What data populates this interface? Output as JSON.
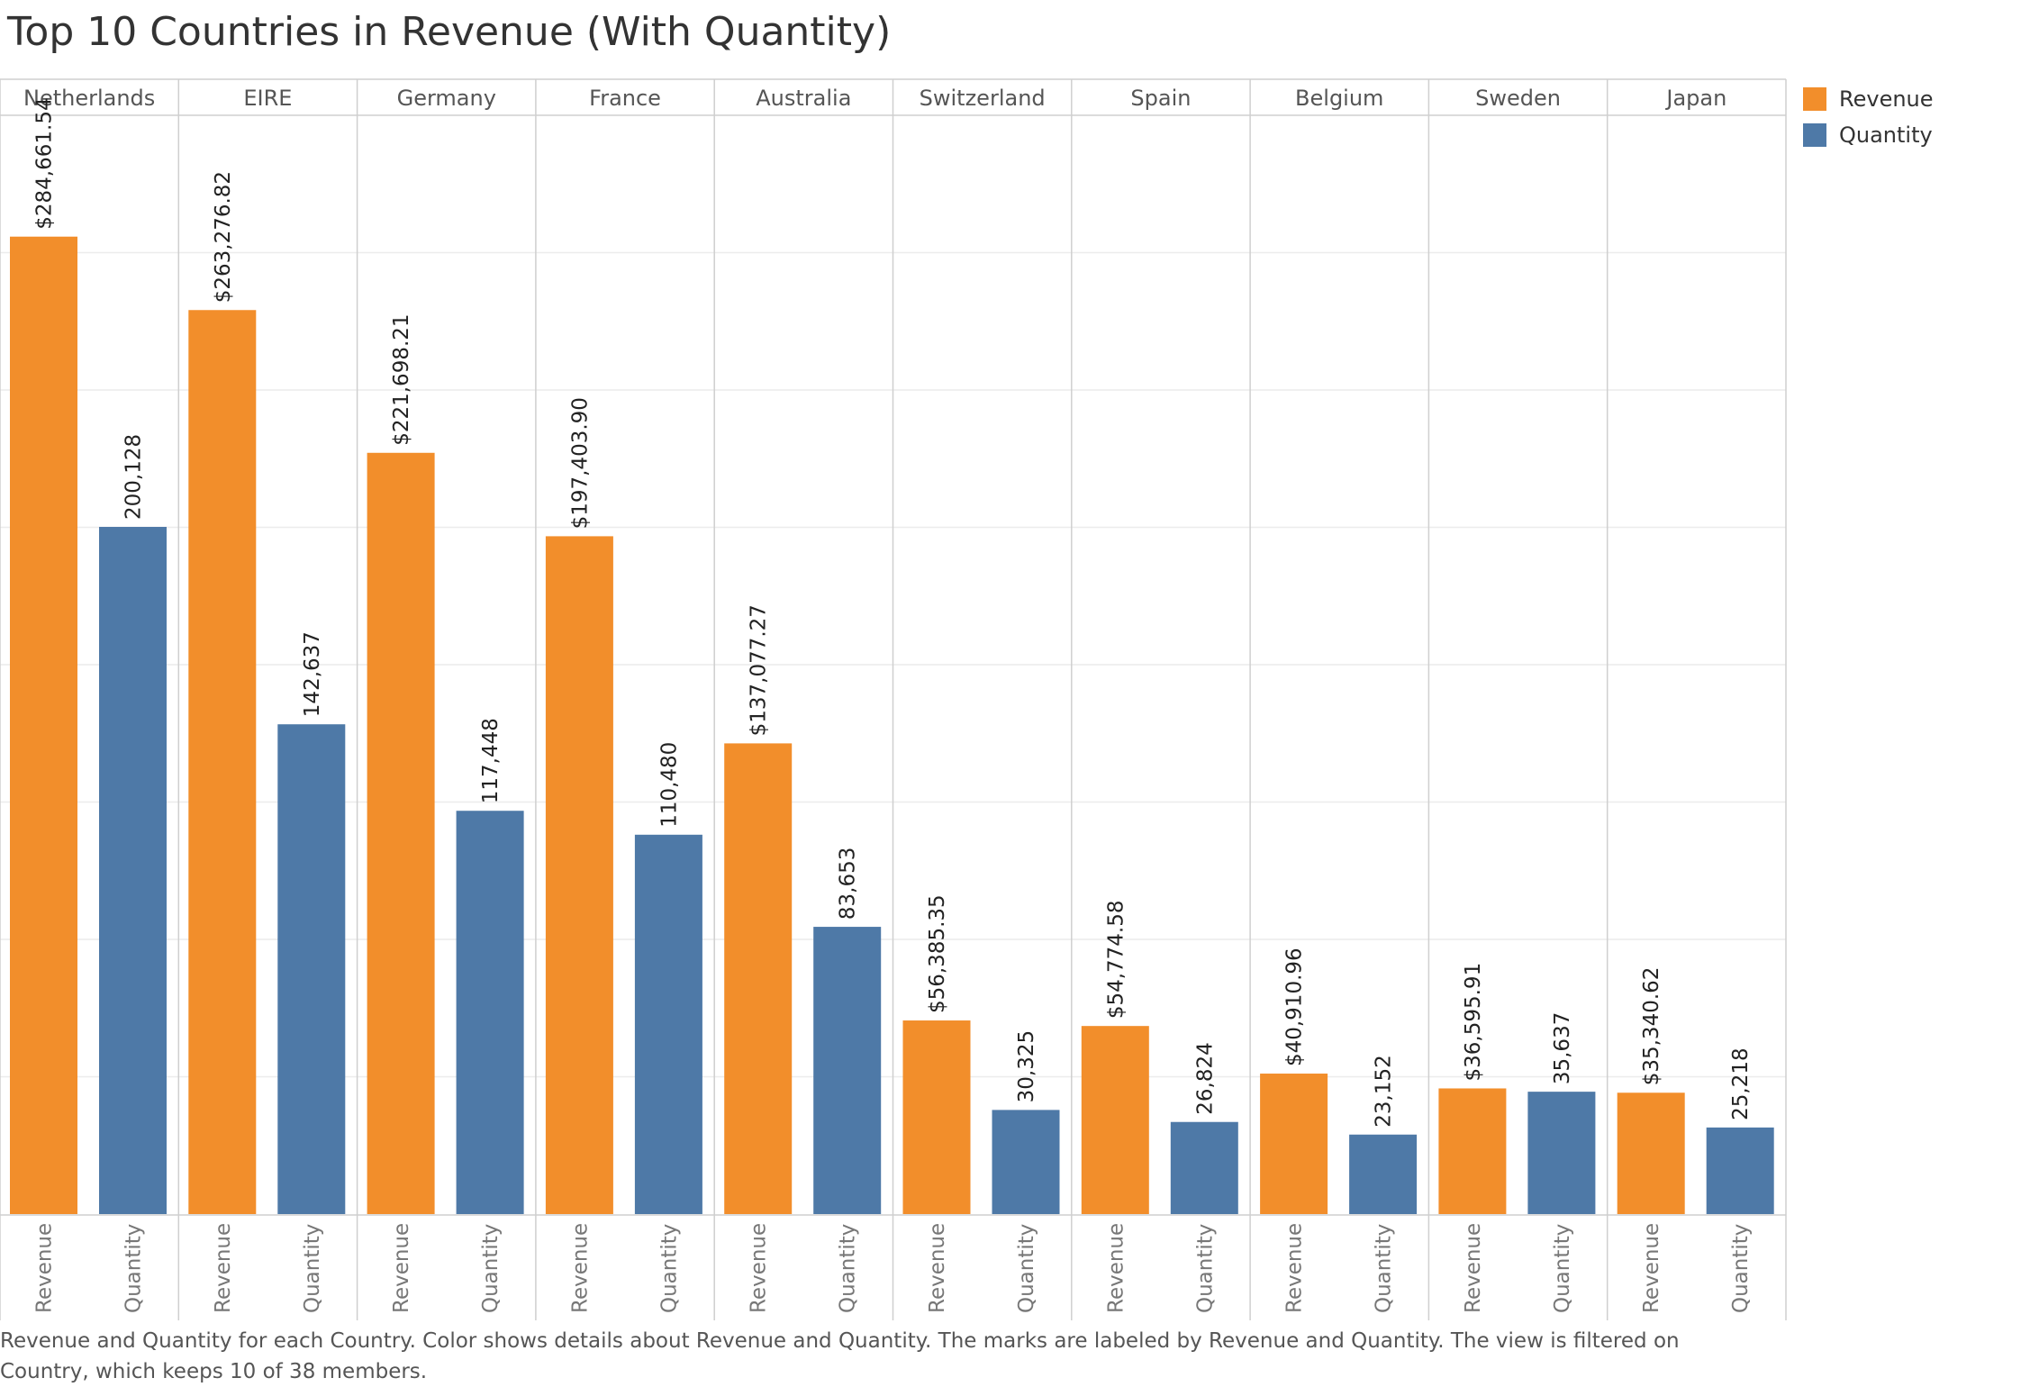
{
  "chart_data": {
    "type": "bar",
    "title": "Top 10 Countries in Revenue (With Quantity)",
    "categories": [
      "Netherlands",
      "EIRE",
      "Germany",
      "France",
      "Australia",
      "Switzerland",
      "Spain",
      "Belgium",
      "Sweden",
      "Japan"
    ],
    "measure_names": [
      "Revenue",
      "Quantity"
    ],
    "series": [
      {
        "name": "Revenue",
        "color": "#f28e2b",
        "values": [
          284661.54,
          263276.82,
          221698.21,
          197403.9,
          137077.27,
          56385.35,
          54774.58,
          40910.96,
          36595.91,
          35340.62
        ],
        "labels": [
          "$284,661.54",
          "$263,276.82",
          "$221,698.21",
          "$197,403.90",
          "$137,077.27",
          "$56,385.35",
          "$54,774.58",
          "$40,910.96",
          "$36,595.91",
          "$35,340.62"
        ]
      },
      {
        "name": "Quantity",
        "color": "#4e79a7",
        "values": [
          200128,
          142637,
          117448,
          110480,
          83653,
          30325,
          26824,
          23152,
          35637,
          25218
        ],
        "labels": [
          "200,128",
          "142,637",
          "117,448",
          "110,480",
          "83,653",
          "30,325",
          "26,824",
          "23,152",
          "35,637",
          "25,218"
        ]
      }
    ],
    "grid": true,
    "legend_position": "right"
  },
  "caption": "Revenue and Quantity for each Country.  Color shows details about Revenue and Quantity.  The marks are labeled by Revenue and Quantity. The view is filtered on Country, which keeps 10 of 38 members."
}
